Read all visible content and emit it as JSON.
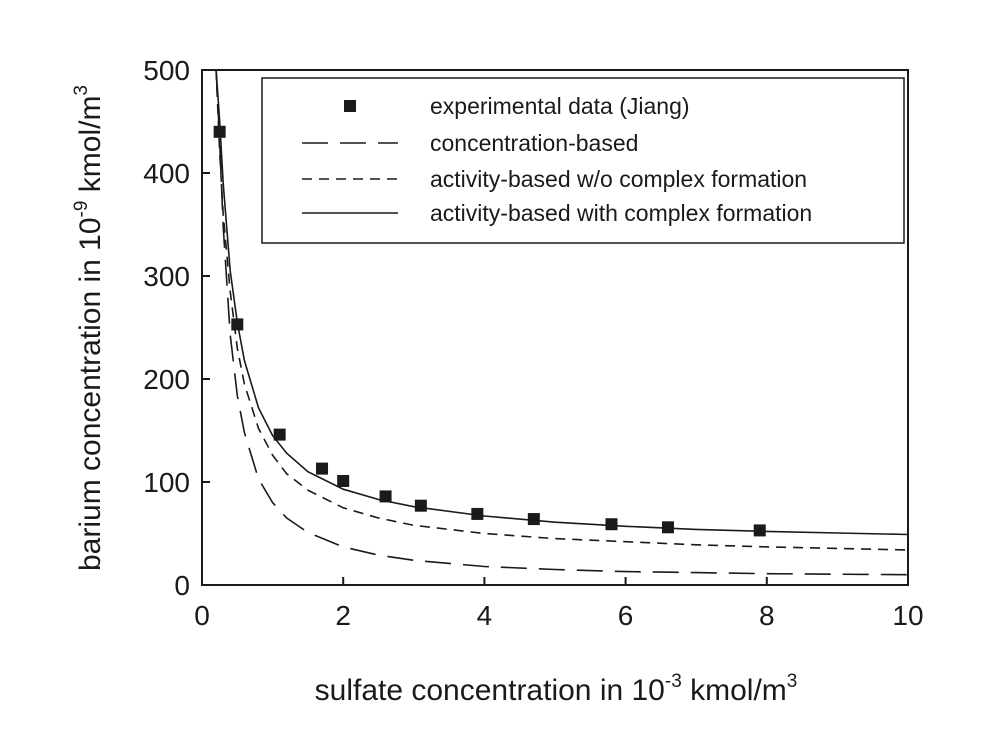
{
  "chart_data": {
    "type": "scatter",
    "xlabel": {
      "pre": "sulfate concentration in 10",
      "sup": "-3",
      "post": " kmol/m",
      "sup2": "3"
    },
    "ylabel": {
      "pre": "barium concentration in 10",
      "sup": "-9",
      "post": " kmol/m",
      "sup2": "3"
    },
    "xlim": [
      0,
      10
    ],
    "ylim": [
      0,
      500
    ],
    "xticks": [
      0,
      2,
      4,
      6,
      8,
      10
    ],
    "yticks": [
      0,
      100,
      200,
      300,
      400,
      500
    ],
    "grid": false,
    "legend_position": "top-right",
    "series": [
      {
        "name": "experimental data (Jiang)",
        "style": "markers",
        "marker": "square",
        "x": [
          0.25,
          0.5,
          1.1,
          1.7,
          2.0,
          2.6,
          3.1,
          3.9,
          4.7,
          5.8,
          6.6,
          7.9
        ],
        "y": [
          440,
          253,
          146,
          113,
          101,
          86,
          77,
          69,
          64,
          59,
          56,
          53
        ]
      },
      {
        "name": "concentration-based",
        "style": "long-dash",
        "x": [
          0.2,
          0.25,
          0.3,
          0.4,
          0.5,
          0.6,
          0.8,
          1.0,
          1.2,
          1.5,
          2.0,
          2.5,
          3.0,
          4.0,
          5.0,
          6.0,
          7.0,
          8.0,
          9.0,
          10.0
        ],
        "y": [
          500,
          430,
          348,
          243,
          184,
          148,
          103,
          80,
          65,
          51,
          37,
          29,
          24,
          18,
          15,
          13,
          12,
          11,
          10.5,
          10
        ]
      },
      {
        "name": "activity-based w/o complex formation",
        "style": "short-dash",
        "x": [
          0.2,
          0.25,
          0.3,
          0.4,
          0.5,
          0.6,
          0.8,
          1.0,
          1.2,
          1.5,
          2.0,
          2.5,
          3.0,
          4.0,
          5.0,
          6.0,
          7.0,
          8.0,
          9.0,
          10.0
        ],
        "y": [
          500,
          420,
          360,
          285,
          230,
          195,
          152,
          126,
          108,
          92,
          75,
          65,
          58,
          50,
          45,
          42,
          39,
          37,
          35.5,
          34
        ]
      },
      {
        "name": "activity-based with complex formation",
        "style": "solid",
        "x": [
          0.2,
          0.25,
          0.3,
          0.4,
          0.5,
          0.6,
          0.8,
          1.0,
          1.2,
          1.5,
          2.0,
          2.5,
          3.0,
          4.0,
          5.0,
          6.0,
          7.0,
          8.0,
          9.0,
          10.0
        ],
        "y": [
          500,
          450,
          390,
          305,
          255,
          218,
          172,
          145,
          128,
          110,
          93,
          83,
          76,
          67,
          61,
          57,
          54,
          52,
          50.5,
          49
        ]
      }
    ]
  }
}
